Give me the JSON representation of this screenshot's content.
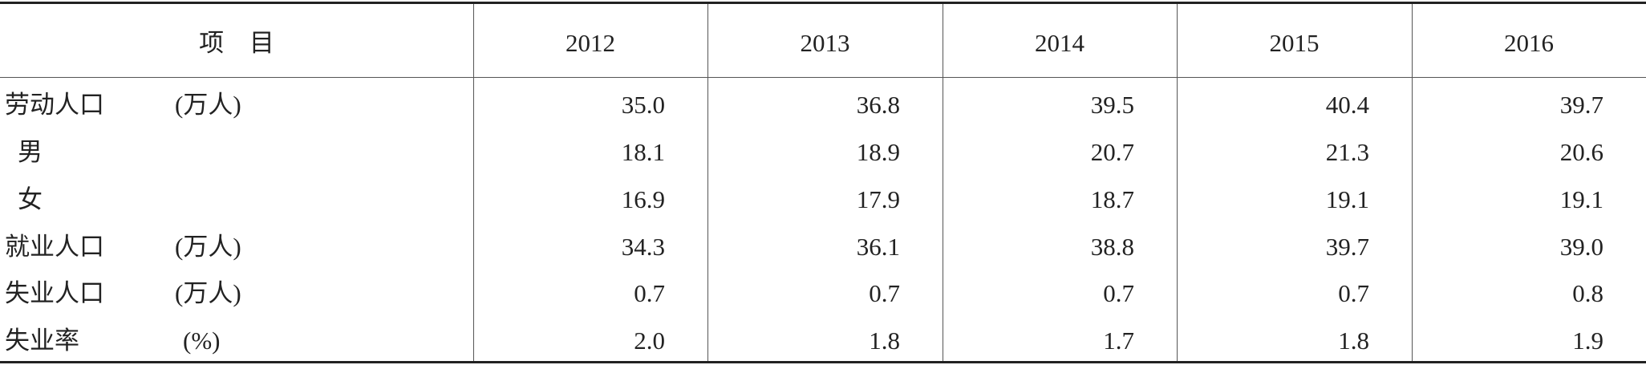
{
  "table": {
    "header": {
      "item": "项 目",
      "years": [
        "2012",
        "2013",
        "2014",
        "2015",
        "2016"
      ]
    },
    "rows": [
      {
        "label": "劳动人口",
        "unit": "(万人)",
        "values": [
          "35.0",
          "36.8",
          "39.5",
          "40.4",
          "39.7"
        ]
      },
      {
        "label": "男",
        "values": [
          "18.1",
          "18.9",
          "20.7",
          "21.3",
          "20.6"
        ]
      },
      {
        "label": "女",
        "values": [
          "16.9",
          "17.9",
          "18.7",
          "19.1",
          "19.1"
        ]
      },
      {
        "label": "就业人口",
        "unit": "(万人)",
        "values": [
          "34.3",
          "36.1",
          "38.8",
          "39.7",
          "39.0"
        ]
      },
      {
        "label": "失业人口",
        "unit": "(万人)",
        "values": [
          "0.7",
          "0.7",
          "0.7",
          "0.7",
          "0.8"
        ]
      },
      {
        "label": "失业率",
        "unit": "(%)",
        "values": [
          "2.0",
          "1.8",
          "1.7",
          "1.8",
          "1.9"
        ]
      }
    ]
  }
}
